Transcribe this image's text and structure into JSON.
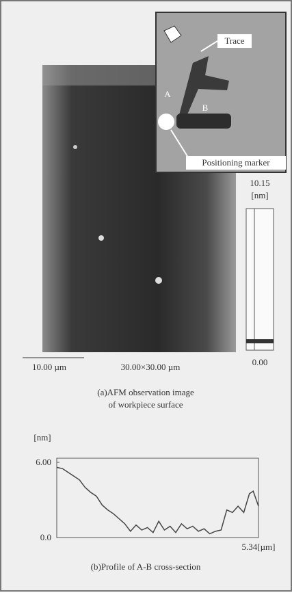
{
  "afm": {
    "inset_labels": {
      "trace": "Trace",
      "a": "A",
      "b": "B",
      "marker": "Positioning marker"
    },
    "colorbar": {
      "max": "10.15",
      "unit": "[nm]",
      "min": "0.00"
    },
    "scale_bar": "10.00 µm",
    "scan_size": "30.00×30.00 µm",
    "caption": [
      "(a)AFM observation image",
      "of workpiece surface"
    ]
  },
  "chart_data": {
    "type": "line",
    "y_label": "[nm]",
    "x": [
      0,
      0.15,
      0.3,
      0.45,
      0.6,
      0.75,
      0.9,
      1.05,
      1.2,
      1.35,
      1.5,
      1.65,
      1.8,
      1.95,
      2.1,
      2.25,
      2.4,
      2.55,
      2.7,
      2.85,
      3.0,
      3.15,
      3.3,
      3.45,
      3.6,
      3.75,
      3.9,
      4.05,
      4.2,
      4.35,
      4.5,
      4.65,
      4.8,
      4.95,
      5.1,
      5.2,
      5.34
    ],
    "values": [
      5.6,
      5.5,
      5.2,
      4.9,
      4.6,
      4.0,
      3.6,
      3.3,
      2.6,
      2.2,
      1.9,
      1.5,
      1.1,
      0.5,
      1.0,
      0.6,
      0.8,
      0.4,
      1.3,
      0.6,
      0.9,
      0.4,
      1.1,
      0.7,
      0.9,
      0.5,
      0.7,
      0.3,
      0.5,
      0.6,
      2.2,
      2.0,
      2.5,
      2.0,
      3.5,
      3.7,
      2.5
    ],
    "color": "#444444",
    "xlim": [
      0,
      5.34
    ],
    "xticks": [
      {
        "value": 5.34,
        "label": "5.34[µm]"
      }
    ],
    "ylim": [
      0,
      6
    ],
    "yticks": [
      {
        "value": 0,
        "label": "0.0"
      },
      {
        "value": 6,
        "label": "6.00"
      }
    ],
    "caption": "(b)Profile of A-B cross-section"
  }
}
